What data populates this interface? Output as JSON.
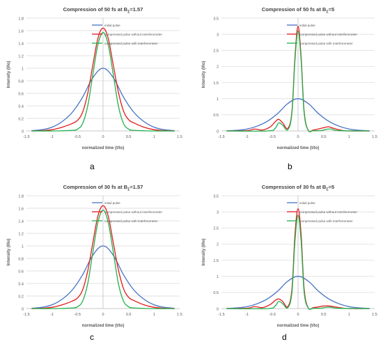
{
  "panel_labels": [
    "a",
    "b",
    "c",
    "d"
  ],
  "colors": {
    "initial": "#4472c4",
    "without": "#e31a1c",
    "with": "#21b04b",
    "grid": "#d9d9d9",
    "axis": "#bfbfbf",
    "text": "#595959"
  },
  "chart_data": [
    {
      "type": "line",
      "title": "Compression  of 50 fs at B",
      "title_sub": "Σ",
      "title_suffix": "=1.57",
      "xlabel": "normalized time (t/to)",
      "ylabel": "Intensity (I/Io)",
      "xlim": [
        -1.5,
        1.5
      ],
      "ylim": [
        0,
        1.8
      ],
      "xticks": [
        -1.5,
        -1,
        -0.5,
        0,
        0.5,
        1,
        1.5
      ],
      "xtick_labels": [
        "-1.5",
        "-1",
        "-0.5",
        "0",
        "0.5",
        "1",
        "1.5"
      ],
      "yticks": [
        0,
        0.2,
        0.4,
        0.6,
        0.8,
        1,
        1.2,
        1.4,
        1.6,
        1.8
      ],
      "ytick_labels": [
        "0",
        "0.2",
        "0.4",
        "0.6",
        "0.8",
        "1",
        "1.2",
        "1.4",
        "1.6",
        "1.8"
      ],
      "grid": true,
      "legend_position": "top-right",
      "series": [
        {
          "name": "initial pulse",
          "color_key": "initial",
          "x": [
            -1.4,
            -1.2,
            -1,
            -0.8,
            -0.6,
            -0.4,
            -0.2,
            0,
            0.2,
            0.4,
            0.6,
            0.8,
            1,
            1.2,
            1.4
          ],
          "y": [
            0.004,
            0.02,
            0.06,
            0.15,
            0.3,
            0.54,
            0.85,
            1.0,
            0.85,
            0.54,
            0.3,
            0.15,
            0.06,
            0.02,
            0.004
          ]
        },
        {
          "name": "compressed pulse without interferometer",
          "color_key": "without",
          "x": [
            -1.4,
            -1.2,
            -1,
            -0.8,
            -0.6,
            -0.5,
            -0.4,
            -0.3,
            -0.2,
            -0.1,
            0,
            0.1,
            0.2,
            0.3,
            0.4,
            0.5,
            0.6,
            0.8,
            1,
            1.2,
            1.4
          ],
          "y": [
            0,
            0.005,
            0.02,
            0.06,
            0.12,
            0.17,
            0.3,
            0.6,
            1.05,
            1.48,
            1.64,
            1.48,
            1.05,
            0.62,
            0.32,
            0.18,
            0.13,
            0.06,
            0.02,
            0.005,
            0
          ]
        },
        {
          "name": "compressed pulse with interferometer",
          "color_key": "with",
          "x": [
            -1.4,
            -1,
            -0.6,
            -0.5,
            -0.4,
            -0.3,
            -0.2,
            -0.1,
            0,
            0.1,
            0.2,
            0.3,
            0.4,
            0.5,
            0.6,
            1,
            1.4
          ],
          "y": [
            0,
            0,
            0.01,
            0.03,
            0.12,
            0.4,
            0.9,
            1.38,
            1.57,
            1.38,
            0.9,
            0.4,
            0.12,
            0.03,
            0.01,
            0,
            0
          ]
        }
      ]
    },
    {
      "type": "line",
      "title": "Compression  of 50 fs at B",
      "title_sub": "Σ",
      "title_suffix": "=5",
      "xlabel": "normalized time (t/to)",
      "ylabel": "Intensity (I/Io)",
      "xlim": [
        -1.5,
        1.5
      ],
      "ylim": [
        0,
        3.5
      ],
      "xticks": [
        -1.5,
        -1,
        -0.5,
        0,
        0.5,
        1,
        1.5
      ],
      "xtick_labels": [
        "-1.5",
        "-1",
        "-0.5",
        "0",
        "0.5",
        "1",
        "1.5"
      ],
      "yticks": [
        0,
        0.5,
        1,
        1.5,
        2,
        2.5,
        3,
        3.5
      ],
      "ytick_labels": [
        "0",
        "0.5",
        "1",
        "1.5",
        "2",
        "2.5",
        "3",
        "3.5"
      ],
      "grid": true,
      "legend_position": "top-right",
      "series": [
        {
          "name": "initial pulse",
          "color_key": "initial",
          "x": [
            -1.4,
            -1.2,
            -1,
            -0.8,
            -0.6,
            -0.4,
            -0.2,
            0,
            0.2,
            0.4,
            0.6,
            0.8,
            1,
            1.2,
            1.4
          ],
          "y": [
            0.004,
            0.02,
            0.06,
            0.15,
            0.3,
            0.54,
            0.85,
            1.0,
            0.85,
            0.54,
            0.3,
            0.15,
            0.06,
            0.02,
            0.004
          ]
        },
        {
          "name": "compressed pulse without interferometer",
          "color_key": "without",
          "x": [
            -1.4,
            -1,
            -0.85,
            -0.7,
            -0.55,
            -0.45,
            -0.38,
            -0.3,
            -0.2,
            -0.12,
            -0.06,
            0,
            0.06,
            0.12,
            0.2,
            0.3,
            0.4,
            0.5,
            0.6,
            0.7,
            0.85,
            1,
            1.4
          ],
          "y": [
            0,
            0.01,
            0.06,
            0.03,
            0.12,
            0.28,
            0.36,
            0.25,
            0.08,
            0.6,
            2.3,
            3.25,
            2.3,
            0.6,
            0.02,
            0.03,
            0.06,
            0.1,
            0.13,
            0.08,
            0.02,
            0,
            0
          ]
        },
        {
          "name": "compressed pulse with interferometer",
          "color_key": "with",
          "x": [
            -1.4,
            -0.6,
            -0.45,
            -0.38,
            -0.3,
            -0.2,
            -0.12,
            -0.06,
            0,
            0.06,
            0.12,
            0.2,
            0.3,
            0.45,
            0.55,
            0.65,
            0.8,
            1.4
          ],
          "y": [
            0,
            0,
            0.08,
            0.25,
            0.18,
            0.04,
            0.55,
            2.2,
            3.1,
            2.2,
            0.55,
            0.02,
            0.01,
            0.01,
            0.05,
            0.06,
            0.01,
            0
          ]
        }
      ]
    },
    {
      "type": "line",
      "title": "Compression  of 30 fs at B",
      "title_sub": "Σ",
      "title_suffix": "=1.57",
      "xlabel": "normalized time (t/to)",
      "ylabel": "Intensity (I/Io)",
      "xlim": [
        -1.5,
        1.5
      ],
      "ylim": [
        0,
        1.8
      ],
      "xticks": [
        -1.5,
        -1,
        -0.5,
        0,
        0.5,
        1,
        1.5
      ],
      "xtick_labels": [
        "-1.5",
        "-1",
        "-0.5",
        "0",
        "0.5",
        "1",
        "1.5"
      ],
      "yticks": [
        0,
        0.2,
        0.4,
        0.6,
        0.8,
        1,
        1.2,
        1.4,
        1.6,
        1.8
      ],
      "ytick_labels": [
        "0",
        "0.2",
        "0.4",
        "0.6",
        "0.8",
        "1",
        "1.2",
        "1.4",
        "1.6",
        "1.8"
      ],
      "grid": true,
      "legend_position": "top-right",
      "series": [
        {
          "name": "initial pulse",
          "color_key": "initial",
          "x": [
            -1.4,
            -1.2,
            -1,
            -0.8,
            -0.6,
            -0.4,
            -0.2,
            0,
            0.2,
            0.4,
            0.6,
            0.8,
            1,
            1.2,
            1.4
          ],
          "y": [
            0.004,
            0.02,
            0.06,
            0.15,
            0.3,
            0.54,
            0.85,
            1.0,
            0.85,
            0.54,
            0.3,
            0.15,
            0.06,
            0.02,
            0.004
          ]
        },
        {
          "name": "compressed pulse without interferometer",
          "color_key": "without",
          "x": [
            -1.4,
            -1.2,
            -1,
            -0.8,
            -0.6,
            -0.5,
            -0.4,
            -0.3,
            -0.2,
            -0.1,
            0,
            0.1,
            0.2,
            0.3,
            0.4,
            0.5,
            0.6,
            0.8,
            1,
            1.2,
            1.4
          ],
          "y": [
            0,
            0.005,
            0.02,
            0.06,
            0.12,
            0.17,
            0.3,
            0.6,
            1.05,
            1.48,
            1.64,
            1.48,
            1.05,
            0.62,
            0.32,
            0.18,
            0.13,
            0.06,
            0.02,
            0.005,
            0
          ]
        },
        {
          "name": "compressed pulse with interferometer",
          "color_key": "with",
          "x": [
            -1.4,
            -1,
            -0.6,
            -0.5,
            -0.4,
            -0.3,
            -0.2,
            -0.1,
            0,
            0.1,
            0.2,
            0.3,
            0.4,
            0.5,
            0.6,
            1,
            1.4
          ],
          "y": [
            0,
            0,
            0.01,
            0.03,
            0.12,
            0.4,
            0.9,
            1.38,
            1.57,
            1.38,
            0.9,
            0.4,
            0.12,
            0.03,
            0.01,
            0,
            0
          ]
        }
      ]
    },
    {
      "type": "line",
      "title": "Compression  of 30 fs at B",
      "title_sub": "Σ",
      "title_suffix": "=5",
      "xlabel": "normalized time (t/to)",
      "ylabel": "Intensity (I/Io)",
      "xlim": [
        -1.5,
        1.5
      ],
      "ylim": [
        0,
        3.5
      ],
      "xticks": [
        -1.5,
        -1,
        -0.5,
        0,
        0.5,
        1,
        1.5
      ],
      "xtick_labels": [
        "-1.5",
        "-1",
        "-0.5",
        "0",
        "0.5",
        "1",
        "1.5"
      ],
      "yticks": [
        0,
        0.5,
        1,
        1.5,
        2,
        2.5,
        3,
        3.5
      ],
      "ytick_labels": [
        "0",
        "0.5",
        "1",
        "1.5",
        "2",
        "2.5",
        "3",
        "3.5"
      ],
      "grid": true,
      "legend_position": "top-right",
      "series": [
        {
          "name": "initial pulse",
          "color_key": "initial",
          "x": [
            -1.4,
            -1.2,
            -1,
            -0.8,
            -0.6,
            -0.4,
            -0.2,
            0,
            0.2,
            0.4,
            0.6,
            0.8,
            1,
            1.2,
            1.4
          ],
          "y": [
            0.004,
            0.02,
            0.06,
            0.15,
            0.3,
            0.54,
            0.85,
            1.0,
            0.85,
            0.54,
            0.3,
            0.15,
            0.06,
            0.02,
            0.004
          ]
        },
        {
          "name": "compressed pulse without interferometer",
          "color_key": "without",
          "x": [
            -1.4,
            -1,
            -0.85,
            -0.7,
            -0.55,
            -0.45,
            -0.38,
            -0.3,
            -0.2,
            -0.12,
            -0.06,
            0,
            0.06,
            0.12,
            0.2,
            0.3,
            0.4,
            0.5,
            0.6,
            0.7,
            0.85,
            1,
            1.4
          ],
          "y": [
            0,
            0.01,
            0.06,
            0.03,
            0.12,
            0.25,
            0.3,
            0.22,
            0.06,
            0.6,
            2.3,
            3.1,
            2.3,
            0.6,
            0.02,
            0.03,
            0.05,
            0.08,
            0.08,
            0.06,
            0.02,
            0,
            0
          ]
        },
        {
          "name": "compressed pulse with interferometer",
          "color_key": "with",
          "x": [
            -1.4,
            -0.6,
            -0.45,
            -0.38,
            -0.3,
            -0.2,
            -0.12,
            -0.06,
            0,
            0.06,
            0.12,
            0.2,
            0.3,
            0.45,
            0.55,
            0.65,
            0.8,
            1.4
          ],
          "y": [
            0,
            0,
            0.08,
            0.22,
            0.15,
            0.03,
            0.5,
            2.1,
            2.9,
            2.1,
            0.5,
            0.02,
            0.01,
            0.01,
            0.04,
            0.04,
            0.01,
            0
          ]
        }
      ]
    }
  ]
}
